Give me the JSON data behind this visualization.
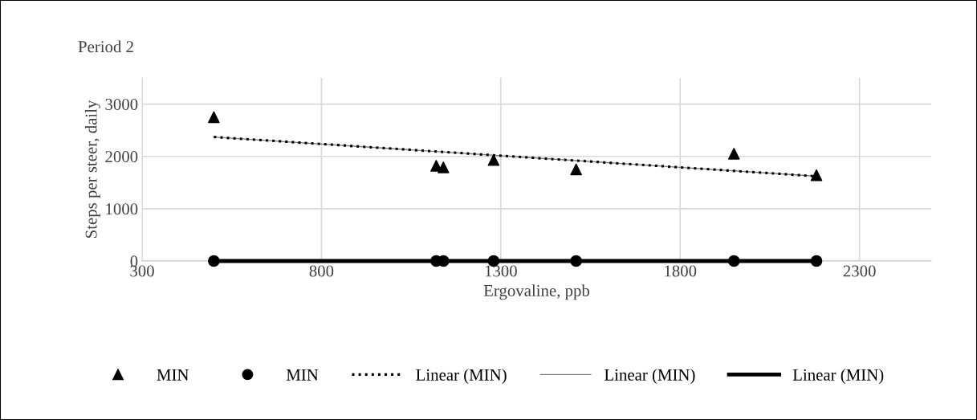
{
  "chart_data": {
    "type": "scatter",
    "title": "Period 2",
    "xlabel": "Ergovaline, ppb",
    "ylabel": "Steps per steer, daily",
    "xlim": [
      300,
      2500
    ],
    "xticks": [
      300,
      800,
      1300,
      1800,
      2300
    ],
    "ylim": [
      0,
      3500
    ],
    "yticks": [
      0,
      1000,
      2000,
      3000
    ],
    "grid": true,
    "legend": "bottom",
    "series": [
      {
        "name": "MIN",
        "marker": "triangle",
        "color": "#000000",
        "x": [
          500,
          1120,
          1140,
          1280,
          1510,
          1950,
          2180
        ],
        "values": [
          2750,
          1820,
          1790,
          1930,
          1750,
          2050,
          1640
        ]
      },
      {
        "name": "MIN",
        "marker": "circle",
        "color": "#000000",
        "x": [
          500,
          1120,
          1140,
          1280,
          1510,
          1950,
          2180
        ],
        "values": [
          0,
          0,
          0,
          0,
          0,
          0,
          0
        ]
      },
      {
        "name": "Linear (MIN)",
        "type": "line",
        "line_style": "dotted",
        "color": "#000000",
        "x": [
          500,
          2180
        ],
        "values": [
          2370,
          1620
        ]
      },
      {
        "name": "Linear (MIN)",
        "type": "line",
        "line_style": "solid",
        "color": "#808080",
        "x": [
          500,
          2180
        ],
        "values": [
          2370,
          1620
        ]
      },
      {
        "name": "Linear (MIN)",
        "type": "line",
        "line_style": "solid",
        "color": "#000000",
        "x": [
          500,
          2180
        ],
        "values": [
          0,
          0
        ]
      }
    ]
  }
}
